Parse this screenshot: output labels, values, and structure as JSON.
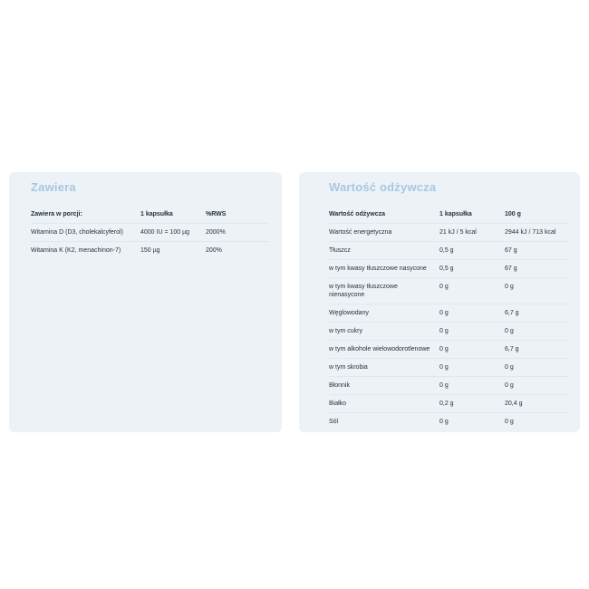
{
  "theme": {
    "page_background": "#ffffff",
    "panel_background": "#edf2f7",
    "title_color": "#a8c7e2",
    "text_color": "#27303e",
    "divider_color": "#dfe8f0"
  },
  "contains_panel": {
    "title": "Zawiera",
    "table": {
      "headers": [
        "Zawiera w porcji:",
        "1 kapsułka",
        "%RWS"
      ],
      "rows": [
        {
          "label": "Witamina D (D3, cholekalcyferol)",
          "per_capsule": "4000 IU = 100 µg",
          "rws": "2000%"
        },
        {
          "label": "Witamina K (K2, menachinon-7)",
          "per_capsule": "150 µg",
          "rws": "200%"
        }
      ]
    }
  },
  "nutrition_panel": {
    "title": "Wartość odżywcza",
    "table": {
      "headers": [
        "Wartość odżywcza",
        "1 kapsułka",
        "100 g"
      ],
      "rows": [
        {
          "label": "Wartość energetyczna",
          "per_capsule": "21 kJ / 5 kcal",
          "per_100g": "2944 kJ / 713 kcal"
        },
        {
          "label": "Tłuszcz",
          "per_capsule": "0,5 g",
          "per_100g": "67 g"
        },
        {
          "label": "w tym kwasy tłuszczowe nasycone",
          "per_capsule": "0,5 g",
          "per_100g": "67 g"
        },
        {
          "label": "w tym kwasy tłuszczowe\nnienasycone",
          "per_capsule": "0 g",
          "per_100g": "0 g"
        },
        {
          "label": "Węglowodany",
          "per_capsule": "0 g",
          "per_100g": "6,7 g"
        },
        {
          "label": "w tym cukry",
          "per_capsule": "0 g",
          "per_100g": "0 g"
        },
        {
          "label": "w tym alkohole wielowodorotlenowe",
          "per_capsule": "0 g",
          "per_100g": "6,7 g"
        },
        {
          "label": "w tym skrobia",
          "per_capsule": "0 g",
          "per_100g": "0 g"
        },
        {
          "label": "Błonnik",
          "per_capsule": "0 g",
          "per_100g": "0 g"
        },
        {
          "label": "Białko",
          "per_capsule": "0,2 g",
          "per_100g": "20,4 g"
        },
        {
          "label": "Sól",
          "per_capsule": "0 g",
          "per_100g": "0 g"
        }
      ]
    }
  }
}
